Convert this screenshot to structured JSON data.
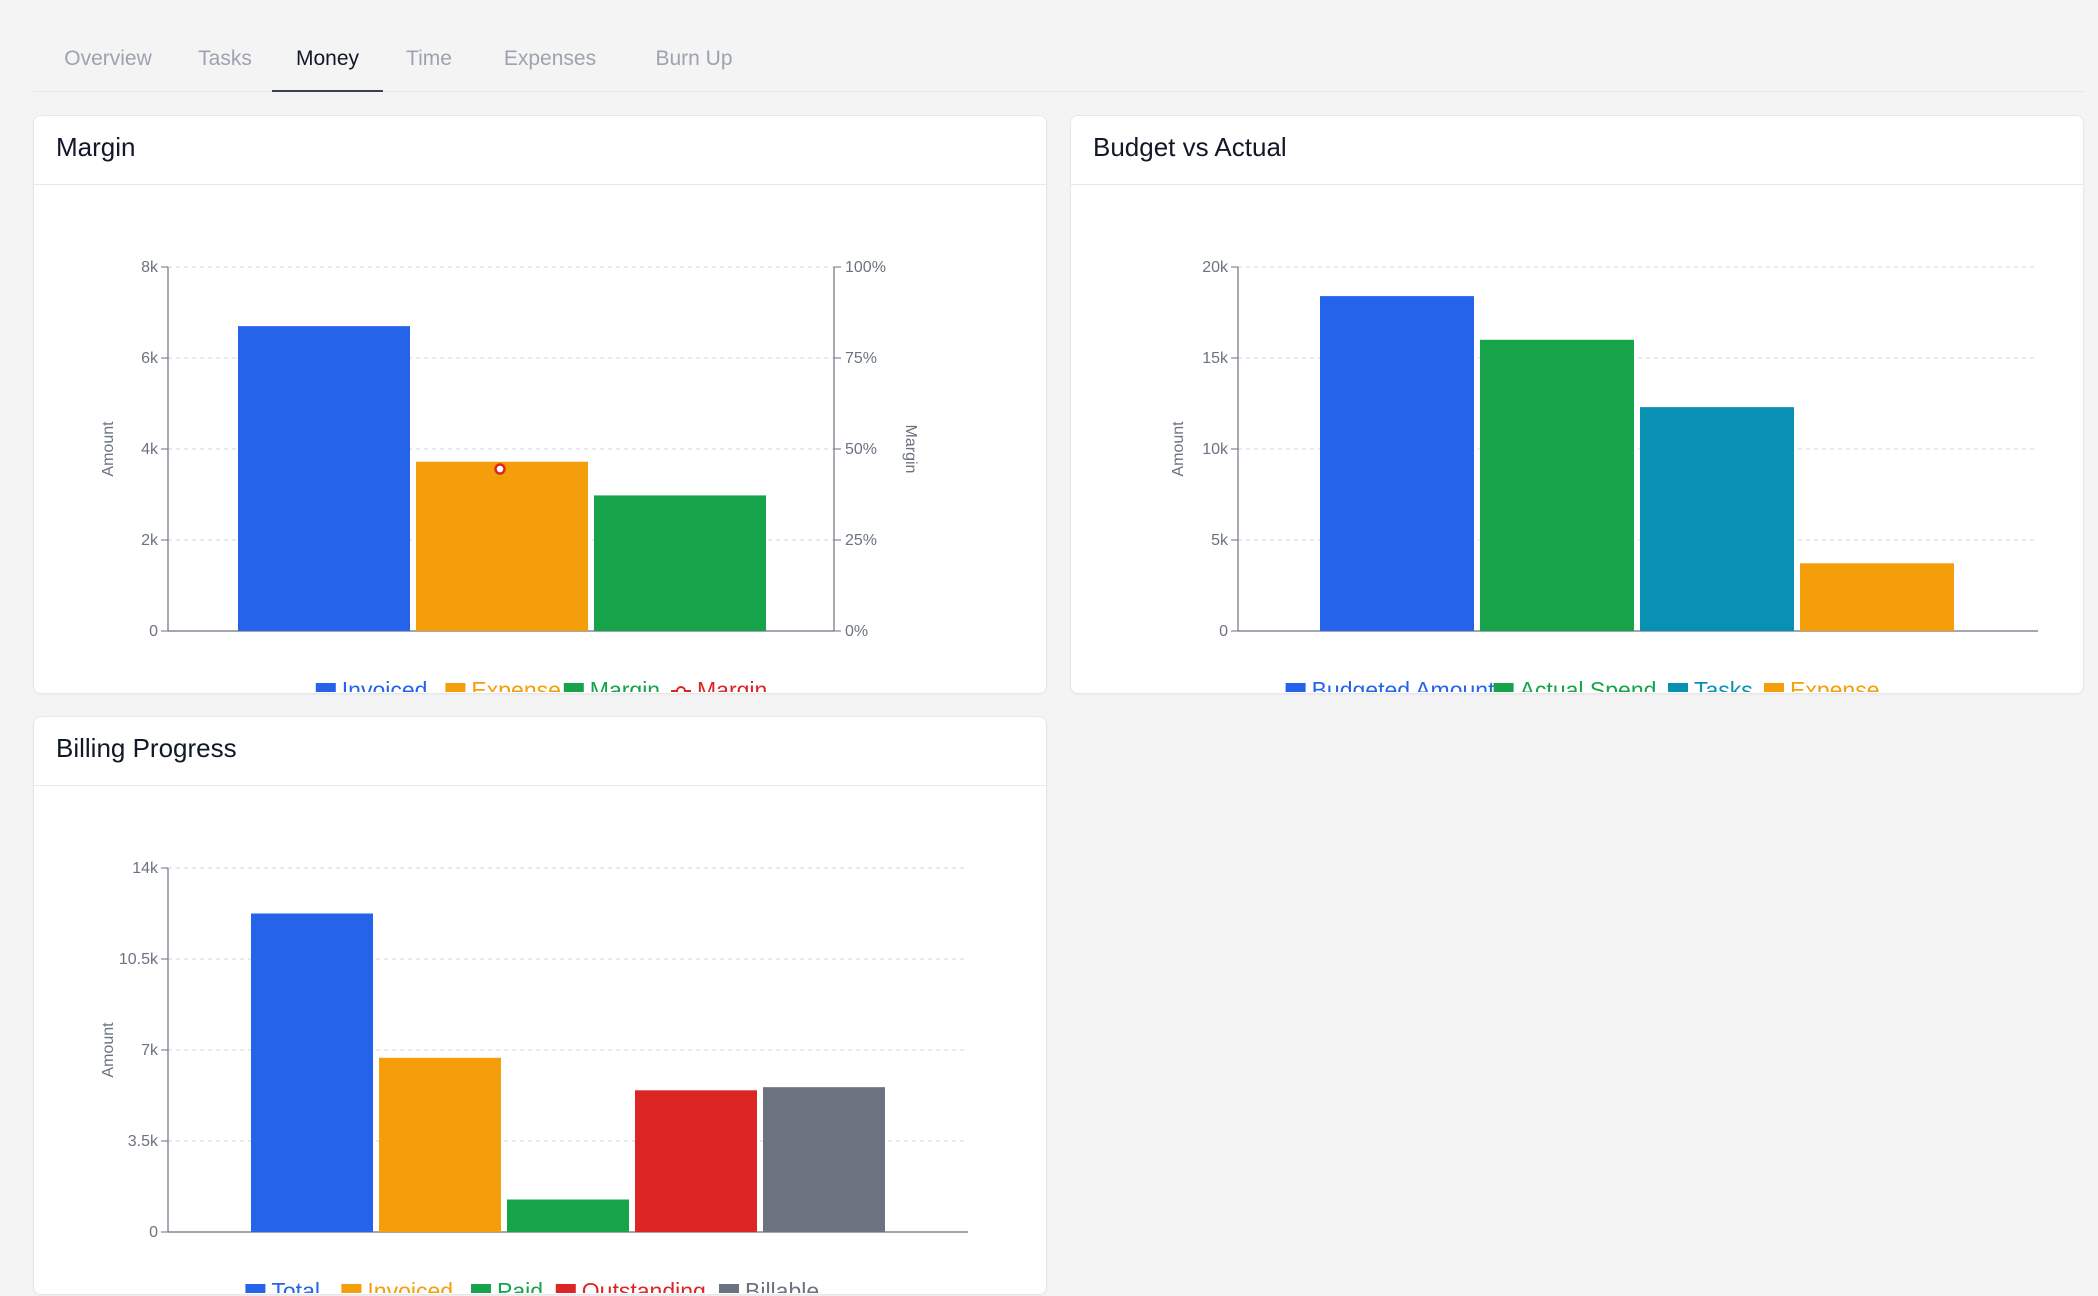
{
  "tabs": [
    {
      "label": "Overview",
      "active": false
    },
    {
      "label": "Tasks",
      "active": false
    },
    {
      "label": "Money",
      "active": true
    },
    {
      "label": "Time",
      "active": false
    },
    {
      "label": "Expenses",
      "active": false
    },
    {
      "label": "Burn Up",
      "active": false
    }
  ],
  "cards": {
    "margin": {
      "title": "Margin"
    },
    "budget": {
      "title": "Budget vs Actual"
    },
    "billing": {
      "title": "Billing Progress"
    }
  },
  "chart_data": [
    {
      "id": "margin",
      "type": "bar",
      "title": "Margin",
      "ylabel": "Amount",
      "y2label": "Margin",
      "ylim": [
        0,
        8000
      ],
      "y2lim": [
        0,
        100
      ],
      "yticks": [
        0,
        2000,
        4000,
        6000,
        8000
      ],
      "ytick_labels": [
        "0",
        "2k",
        "4k",
        "6k",
        "8k"
      ],
      "y2ticks": [
        0,
        25,
        50,
        75,
        100
      ],
      "y2tick_labels": [
        "0%",
        "25%",
        "50%",
        "75%",
        "100%"
      ],
      "grid": true,
      "legend": "bottom",
      "series": [
        {
          "name": "Invoiced",
          "value": 6700,
          "color": "#2563eb"
        },
        {
          "name": "Expense",
          "value": 3720,
          "color": "#f59e0b"
        },
        {
          "name": "Margin",
          "value": 2980,
          "color": "#16a34a"
        }
      ],
      "line_series": {
        "name": "Margin",
        "value": 44.5,
        "axis": "right",
        "color": "#dc2626"
      }
    },
    {
      "id": "budget",
      "type": "bar",
      "title": "Budget vs Actual",
      "ylabel": "Amount",
      "ylim": [
        0,
        20000
      ],
      "yticks": [
        0,
        5000,
        10000,
        15000,
        20000
      ],
      "ytick_labels": [
        "0",
        "5k",
        "10k",
        "15k",
        "20k"
      ],
      "grid": true,
      "legend": "bottom",
      "series": [
        {
          "name": "Budgeted Amount",
          "value": 18400,
          "color": "#2563eb"
        },
        {
          "name": "Actual Spend",
          "value": 16000,
          "color": "#16a34a"
        },
        {
          "name": "Tasks",
          "value": 12300,
          "color": "#0891b2"
        },
        {
          "name": "Expense",
          "value": 3720,
          "color": "#f59e0b"
        }
      ]
    },
    {
      "id": "billing",
      "type": "bar",
      "title": "Billing Progress",
      "ylabel": "Amount",
      "ylim": [
        0,
        14000
      ],
      "yticks": [
        0,
        3500,
        7000,
        10500,
        14000
      ],
      "ytick_labels": [
        "0",
        "3.5k",
        "7k",
        "10.5k",
        "14k"
      ],
      "grid": true,
      "legend": "bottom",
      "series": [
        {
          "name": "Total",
          "value": 12250,
          "color": "#2563eb"
        },
        {
          "name": "Invoiced",
          "value": 6700,
          "color": "#f59e0b"
        },
        {
          "name": "Paid",
          "value": 1250,
          "color": "#16a34a"
        },
        {
          "name": "Outstanding",
          "value": 5450,
          "color": "#dc2626"
        },
        {
          "name": "Billable",
          "value": 5570,
          "color": "#6b7280"
        }
      ]
    }
  ]
}
